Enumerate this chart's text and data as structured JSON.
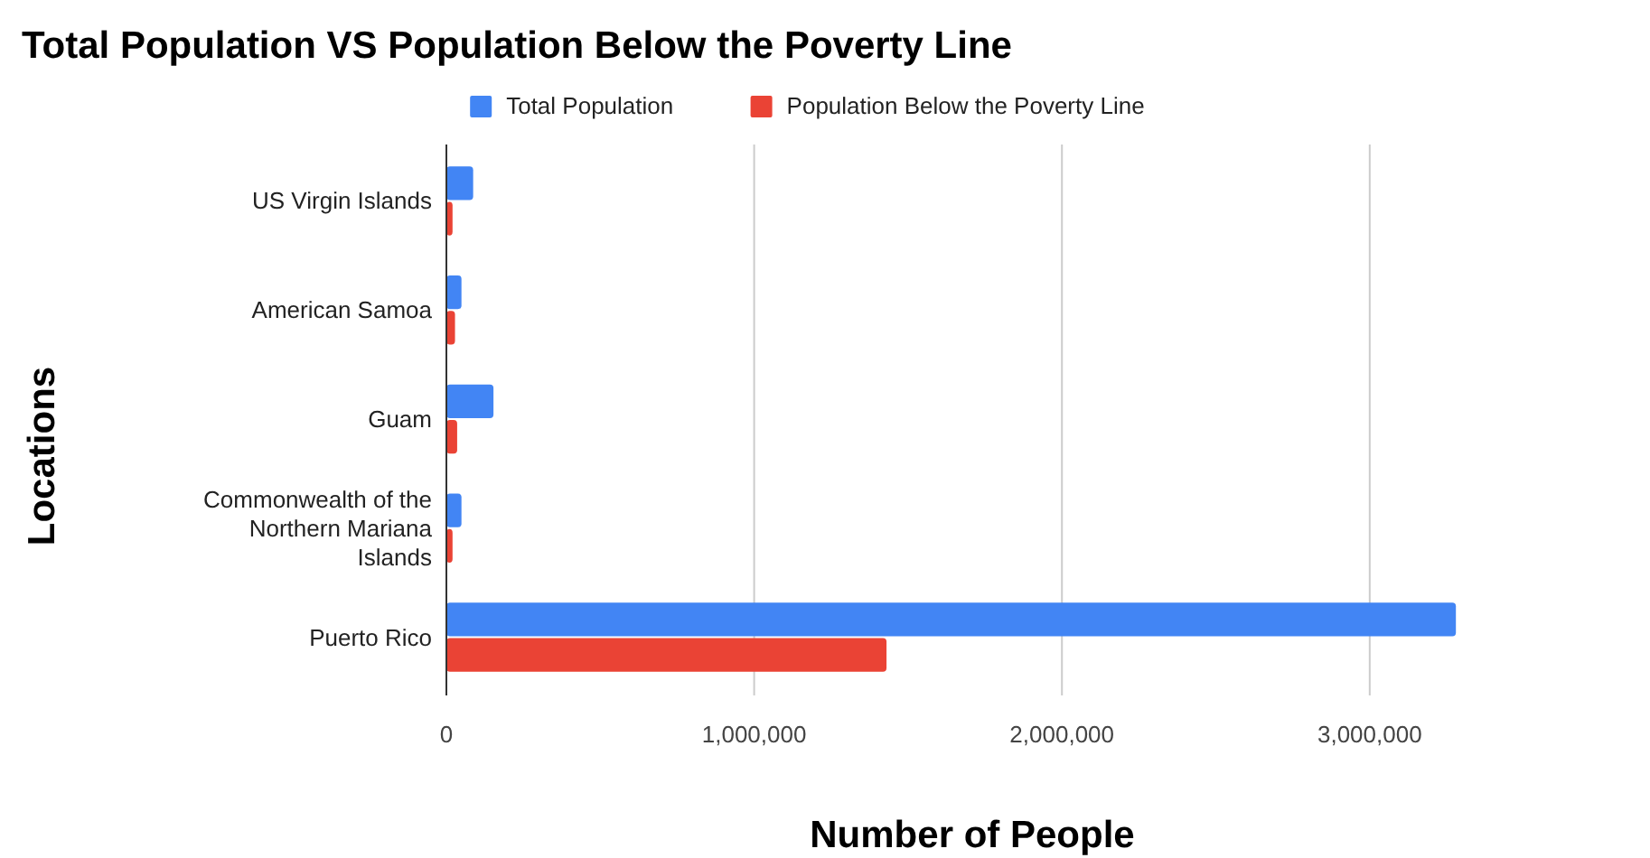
{
  "chart_data": {
    "type": "bar",
    "orientation": "horizontal",
    "title": "Total Population VS Population Below the Poverty Line",
    "xlabel": "Number of People",
    "ylabel": "Locations",
    "categories": [
      "US Virgin Islands",
      "American Samoa",
      "Guam",
      "Commonwealth of the Northern Mariana Islands",
      "Puerto Rico"
    ],
    "series": [
      {
        "name": "Total Population",
        "color": "#4285f4",
        "values": [
          87000,
          49000,
          153000,
          49000,
          3280000
        ]
      },
      {
        "name": "Population Below the Poverty Line",
        "color": "#ea4335",
        "values": [
          20000,
          28000,
          35000,
          20000,
          1430000
        ]
      }
    ],
    "xlim": [
      0,
      3300000
    ],
    "xticks": [
      {
        "value": 0,
        "label": "0"
      },
      {
        "value": 1000000,
        "label": "1,000,000"
      },
      {
        "value": 2000000,
        "label": "2,000,000"
      },
      {
        "value": 3000000,
        "label": "3,000,000"
      }
    ],
    "grid": "x",
    "legend": "top"
  }
}
